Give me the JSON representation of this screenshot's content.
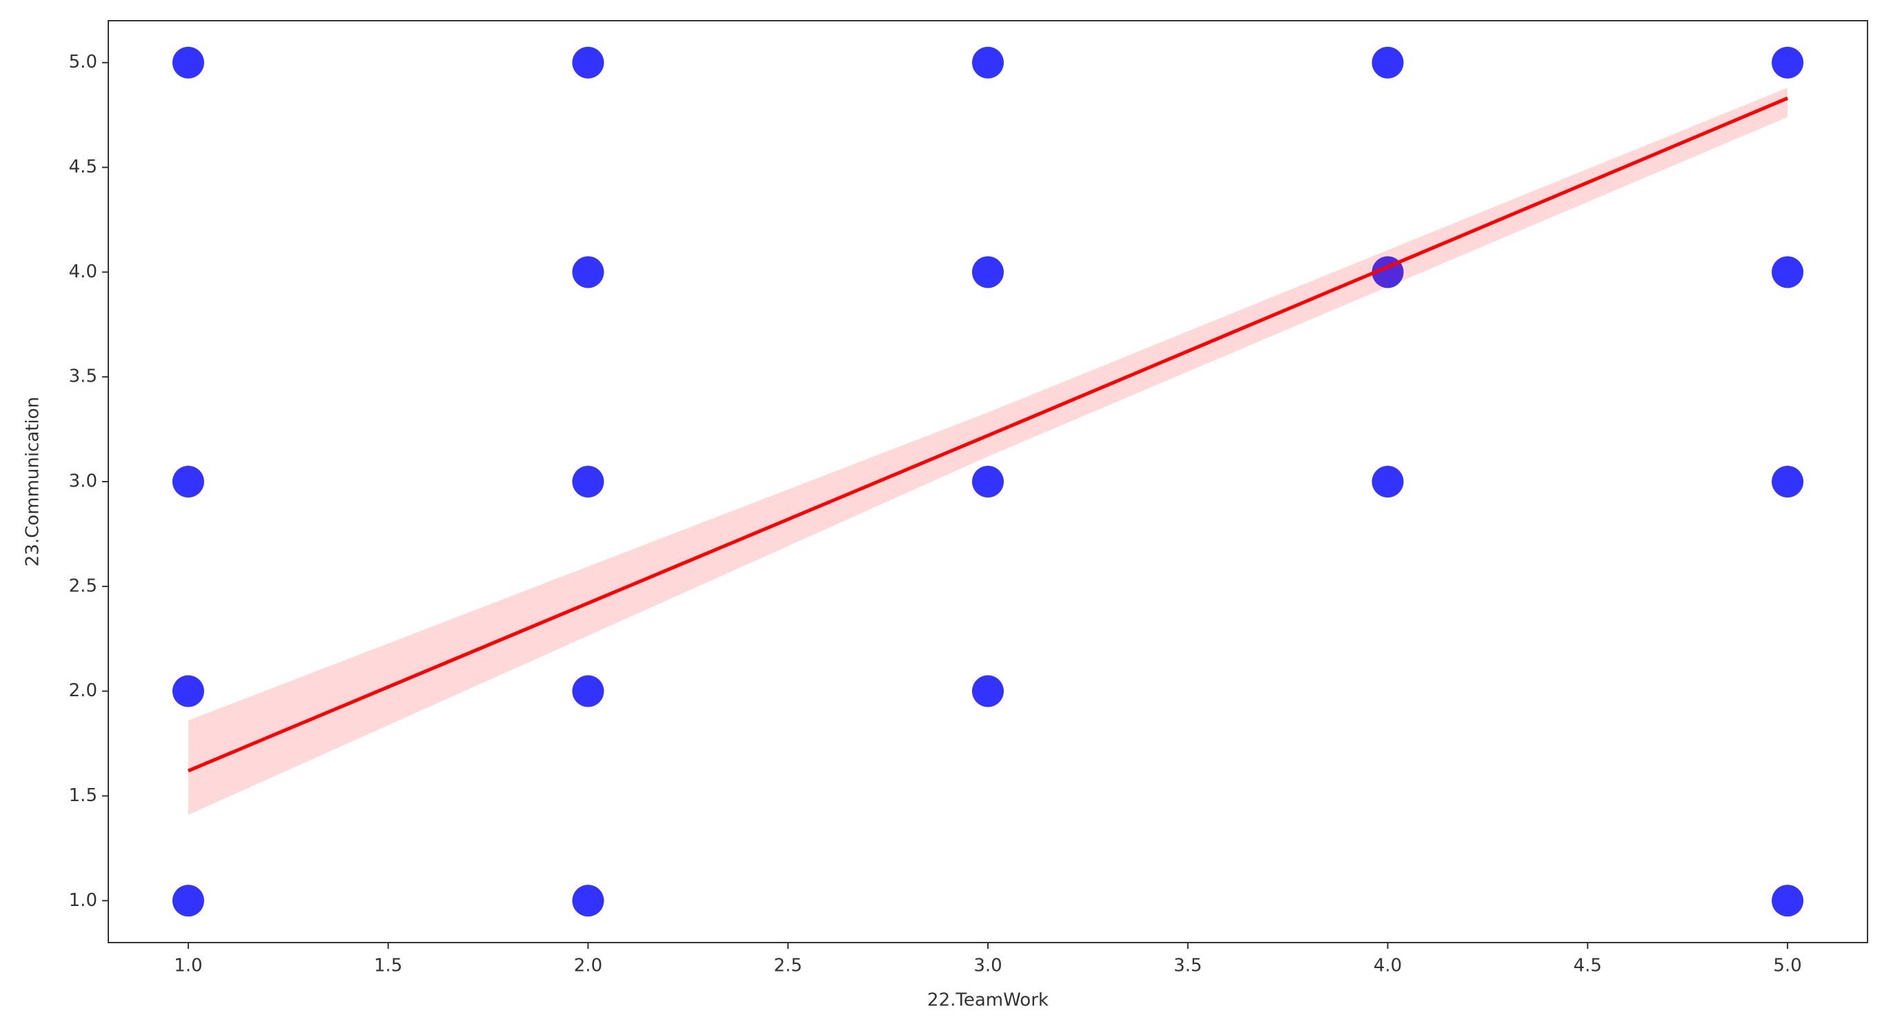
{
  "chart_data": {
    "type": "scatter",
    "x_label": "22.TeamWork",
    "y_label": "23.Communication",
    "x": [
      1,
      1,
      1,
      1,
      2,
      2,
      2,
      2,
      2,
      3,
      3,
      3,
      3,
      4,
      4,
      4,
      5,
      5,
      5,
      5
    ],
    "values": [
      5,
      3,
      2,
      1,
      5,
      4,
      3,
      2,
      1,
      5,
      4,
      3,
      2,
      5,
      4,
      3,
      5,
      4,
      3,
      1
    ],
    "color": "#0000ff",
    "regression": {
      "x": [
        1,
        3,
        5
      ],
      "values": [
        1.62,
        3.22,
        4.83
      ],
      "ci_lower": [
        1.41,
        3.12,
        4.74
      ],
      "ci_upper": [
        1.86,
        3.33,
        4.88
      ],
      "color": "#ff0000"
    },
    "xlim": [
      0.8,
      5.2
    ],
    "ylim": [
      0.8,
      5.2
    ],
    "xticks": [
      {
        "value": 1,
        "label": "1.0"
      },
      {
        "value": 1.5,
        "label": "1.5"
      },
      {
        "value": 2,
        "label": "2.0"
      },
      {
        "value": 2.5,
        "label": "2.5"
      },
      {
        "value": 3,
        "label": "3.0"
      },
      {
        "value": 3.5,
        "label": "3.5"
      },
      {
        "value": 4,
        "label": "4.0"
      },
      {
        "value": 4.5,
        "label": "4.5"
      },
      {
        "value": 5,
        "label": "5.0"
      }
    ],
    "yticks": [
      {
        "value": 1,
        "label": "1.0"
      },
      {
        "value": 1.5,
        "label": "1.5"
      },
      {
        "value": 2,
        "label": "2.0"
      },
      {
        "value": 2.5,
        "label": "2.5"
      },
      {
        "value": 3,
        "label": "3.0"
      },
      {
        "value": 3.5,
        "label": "3.5"
      },
      {
        "value": 4,
        "label": "4.0"
      },
      {
        "value": 4.5,
        "label": "4.5"
      },
      {
        "value": 5,
        "label": "5.0"
      }
    ],
    "grid": false
  }
}
